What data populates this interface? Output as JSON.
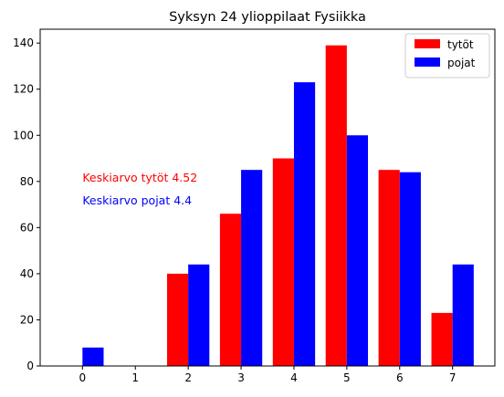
{
  "chart_data": {
    "type": "bar",
    "title": "Syksyn 24 ylioppilaat Fysiikka",
    "xlabel": "",
    "ylabel": "",
    "categories": [
      "0",
      "1",
      "2",
      "3",
      "4",
      "5",
      "6",
      "7"
    ],
    "x": [
      0,
      1,
      2,
      3,
      4,
      5,
      6,
      7
    ],
    "series": [
      {
        "name": "tytöt",
        "color": "#ff0000",
        "values": [
          0,
          0,
          40,
          66,
          90,
          139,
          85,
          23
        ]
      },
      {
        "name": "pojat",
        "color": "#0000ff",
        "values": [
          8,
          0,
          44,
          85,
          123,
          100,
          84,
          44
        ]
      }
    ],
    "xlim": [
      -0.8,
      7.8
    ],
    "ylim": [
      0,
      146
    ],
    "yticks": [
      0,
      20,
      40,
      60,
      80,
      100,
      120,
      140
    ],
    "grid": false,
    "legend_position": "top-right",
    "annotations": [
      {
        "text": "Keskiarvo tytöt 4.52",
        "x": 0,
        "y": 80,
        "color": "#ff0000"
      },
      {
        "text": "Keskiarvo pojat 4.4",
        "x": 0,
        "y": 70,
        "color": "#0000ff"
      }
    ]
  }
}
